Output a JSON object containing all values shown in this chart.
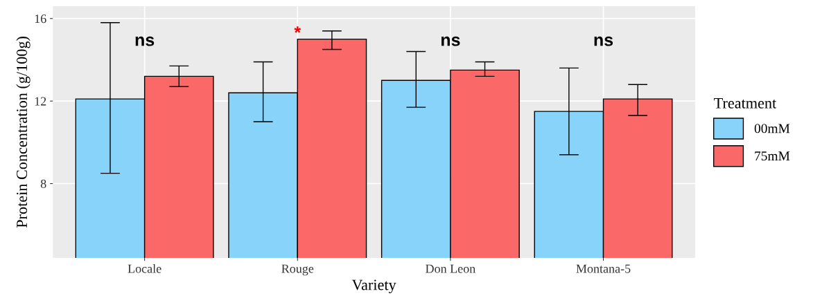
{
  "chart_data": {
    "type": "bar",
    "xlabel": "Variety",
    "ylabel": "Protein Concentration (g/100g)",
    "legend_title": "Treatment",
    "categories": [
      "Locale",
      "Rouge",
      "Don Leon",
      "Montana-5"
    ],
    "series": [
      {
        "name": "00mM",
        "color": "#87d3fa",
        "values": [
          12.1,
          12.4,
          13.0,
          11.5
        ],
        "errors": [
          [
            8.5,
            15.8
          ],
          [
            11.0,
            13.9
          ],
          [
            11.7,
            14.4
          ],
          [
            9.4,
            13.6
          ]
        ]
      },
      {
        "name": "75mM",
        "color": "#fa6868",
        "values": [
          13.2,
          15.0,
          13.5,
          12.1
        ],
        "errors": [
          [
            12.7,
            13.7
          ],
          [
            14.5,
            15.4
          ],
          [
            13.2,
            13.9
          ],
          [
            11.3,
            12.8
          ]
        ]
      }
    ],
    "ylim": [
      4.4,
      16.6
    ],
    "yticks": [
      8,
      12,
      16
    ],
    "grid": true,
    "legend": "right",
    "annotations": [
      "ns",
      "*",
      "ns",
      "ns"
    ]
  }
}
